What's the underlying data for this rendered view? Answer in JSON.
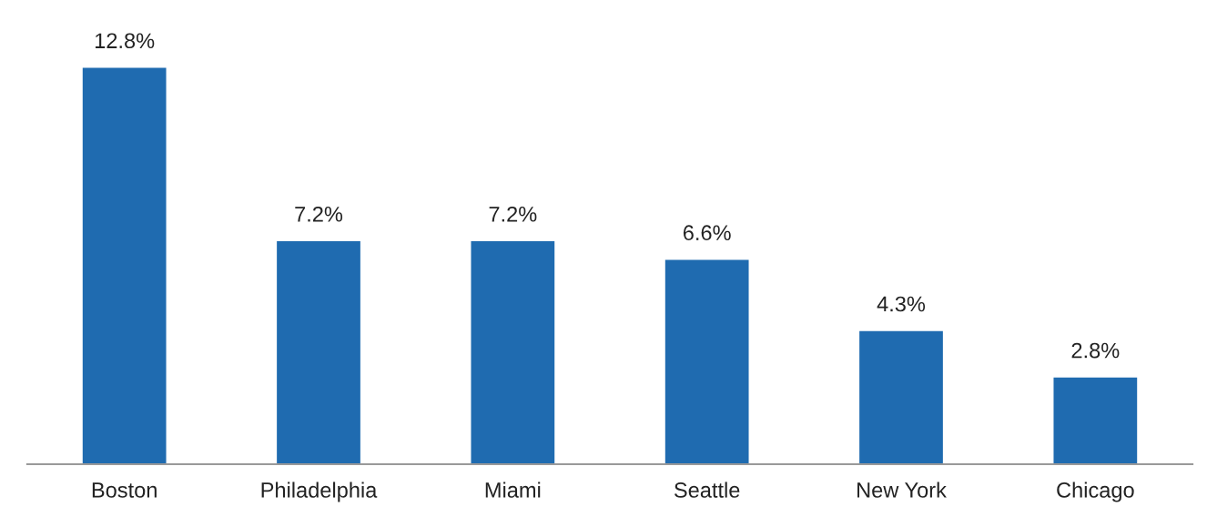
{
  "chart_data": {
    "type": "bar",
    "categories": [
      "Boston",
      "Philadelphia",
      "Miami",
      "Seattle",
      "New York",
      "Chicago"
    ],
    "values": [
      12.8,
      7.2,
      7.2,
      6.6,
      4.3,
      2.8
    ],
    "value_labels": [
      "12.8%",
      "7.2%",
      "7.2%",
      "6.6%",
      "4.3%",
      "2.8%"
    ],
    "color": "#1f6bb0",
    "grid": false,
    "legend": false
  }
}
